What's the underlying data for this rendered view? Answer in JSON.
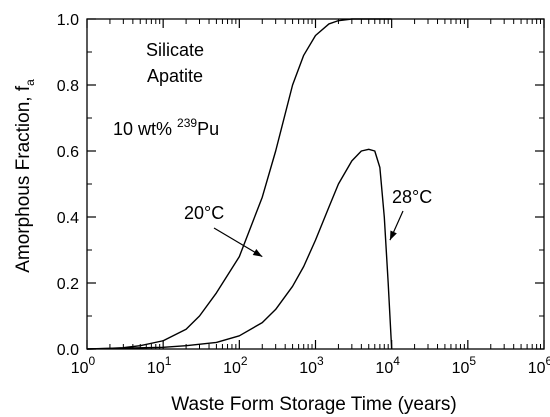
{
  "chart_data": {
    "type": "line",
    "xscale": "log",
    "xlim": [
      1,
      1000000
    ],
    "ylim": [
      0,
      1.0
    ],
    "xlabel": "Waste Form Storage Time (years)",
    "ylabel_main": "Amorphous Fraction, f",
    "ylabel_sub": "a",
    "xticks": [
      {
        "value": 1,
        "base": "10",
        "exp": "0"
      },
      {
        "value": 10,
        "base": "10",
        "exp": "1"
      },
      {
        "value": 100,
        "base": "10",
        "exp": "2"
      },
      {
        "value": 1000,
        "base": "10",
        "exp": "3"
      },
      {
        "value": 10000,
        "base": "10",
        "exp": "4"
      },
      {
        "value": 100000,
        "base": "10",
        "exp": "5"
      },
      {
        "value": 1000000,
        "base": "10",
        "exp": "6"
      }
    ],
    "yticks": [
      {
        "value": 0.0,
        "label": "0.0"
      },
      {
        "value": 0.2,
        "label": "0.2"
      },
      {
        "value": 0.4,
        "label": "0.4"
      },
      {
        "value": 0.6,
        "label": "0.6"
      },
      {
        "value": 0.8,
        "label": "0.8"
      },
      {
        "value": 1.0,
        "label": "1.0"
      }
    ],
    "grid": false,
    "legend": "none",
    "annotations": {
      "material_line1": "Silicate",
      "material_line2": "Apatite",
      "dose_prefix": "10 wt% ",
      "dose_isotope_mass": "239",
      "dose_element": "Pu"
    },
    "series": [
      {
        "name": "20°C",
        "x": [
          1,
          2,
          3,
          5,
          10,
          20,
          30,
          50,
          100,
          200,
          300,
          500,
          700,
          1000,
          1500,
          2000,
          3000,
          5000,
          10000
        ],
        "y": [
          0.0,
          0.002,
          0.004,
          0.01,
          0.025,
          0.06,
          0.1,
          0.17,
          0.28,
          0.46,
          0.6,
          0.8,
          0.89,
          0.95,
          0.985,
          0.995,
          1.0,
          1.0,
          1.0
        ],
        "label_anchor": {
          "x": 200,
          "y": 0.28
        }
      },
      {
        "name": "28°C",
        "x": [
          1,
          10,
          20,
          50,
          100,
          200,
          300,
          500,
          700,
          1000,
          1500,
          2000,
          3000,
          4000,
          5000,
          6000,
          7000,
          8000,
          9000,
          10000
        ],
        "y": [
          0.0,
          0.005,
          0.01,
          0.02,
          0.04,
          0.08,
          0.12,
          0.19,
          0.25,
          0.33,
          0.43,
          0.5,
          0.57,
          0.6,
          0.605,
          0.6,
          0.55,
          0.4,
          0.2,
          0.0
        ],
        "label_anchor": {
          "x": 9500,
          "y": 0.33
        }
      }
    ],
    "colors": {
      "line": "#000000",
      "axis": "#000000"
    }
  }
}
